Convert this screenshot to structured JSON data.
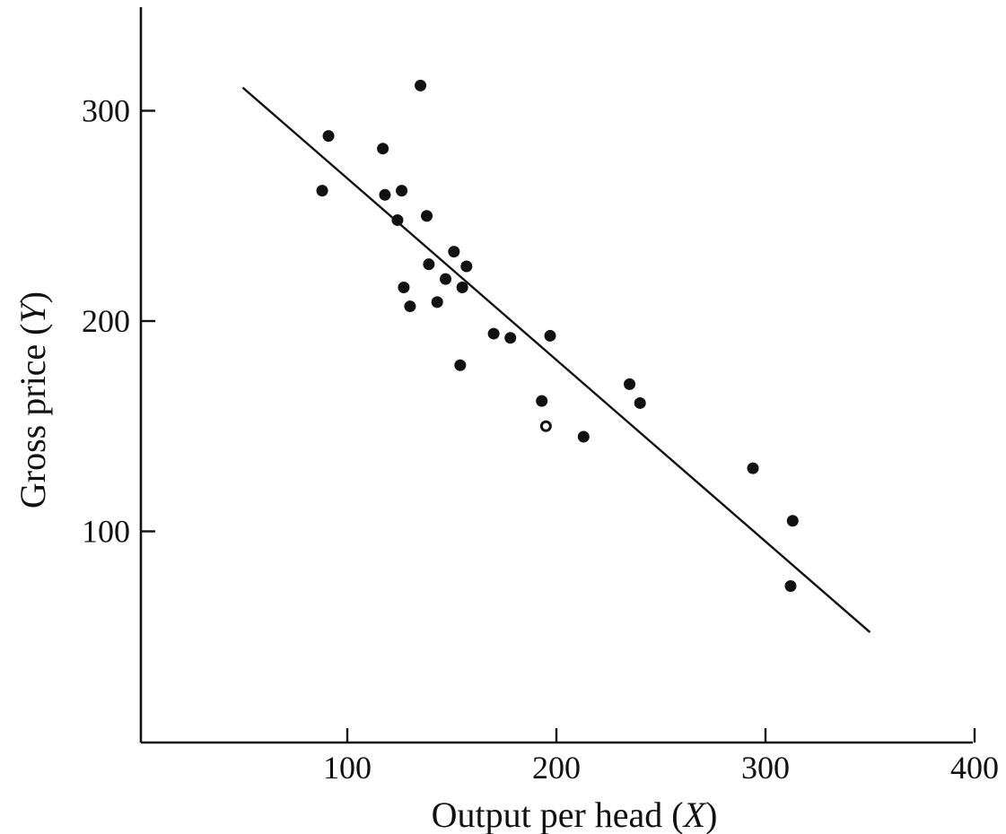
{
  "chart_data": {
    "type": "scatter",
    "title": "",
    "xlabel": "Output per head",
    "xlabel_symbol": "X",
    "ylabel": "Gross price",
    "ylabel_symbol": "Y",
    "xlim": [
      10,
      400
    ],
    "ylim": [
      0,
      350
    ],
    "x_ticks": [
      100,
      200,
      300,
      400
    ],
    "x_tick_labels": [
      "100",
      "200",
      "300",
      "400"
    ],
    "y_ticks": [
      100,
      200,
      300
    ],
    "y_tick_labels": [
      "100",
      "200",
      "300"
    ],
    "grid": false,
    "legend": "none",
    "series": [
      {
        "points": [
          {
            "x": 88,
            "y": 262
          },
          {
            "x": 91,
            "y": 288
          },
          {
            "x": 117,
            "y": 282
          },
          {
            "x": 118,
            "y": 260
          },
          {
            "x": 124,
            "y": 248
          },
          {
            "x": 126,
            "y": 262
          },
          {
            "x": 127,
            "y": 216
          },
          {
            "x": 130,
            "y": 207
          },
          {
            "x": 135,
            "y": 312
          },
          {
            "x": 138,
            "y": 250
          },
          {
            "x": 139,
            "y": 227
          },
          {
            "x": 143,
            "y": 209
          },
          {
            "x": 147,
            "y": 220
          },
          {
            "x": 151,
            "y": 233
          },
          {
            "x": 154,
            "y": 179
          },
          {
            "x": 155,
            "y": 216
          },
          {
            "x": 157,
            "y": 226
          },
          {
            "x": 170,
            "y": 194
          },
          {
            "x": 178,
            "y": 192
          },
          {
            "x": 193,
            "y": 162
          },
          {
            "x": 195,
            "y": 150,
            "open": true
          },
          {
            "x": 197,
            "y": 193
          },
          {
            "x": 213,
            "y": 145
          },
          {
            "x": 235,
            "y": 170
          },
          {
            "x": 240,
            "y": 161
          },
          {
            "x": 294,
            "y": 130
          },
          {
            "x": 312,
            "y": 74
          },
          {
            "x": 313,
            "y": 105
          }
        ]
      }
    ],
    "fit_line": {
      "x": [
        50,
        350
      ],
      "y": [
        311,
        52
      ]
    }
  }
}
